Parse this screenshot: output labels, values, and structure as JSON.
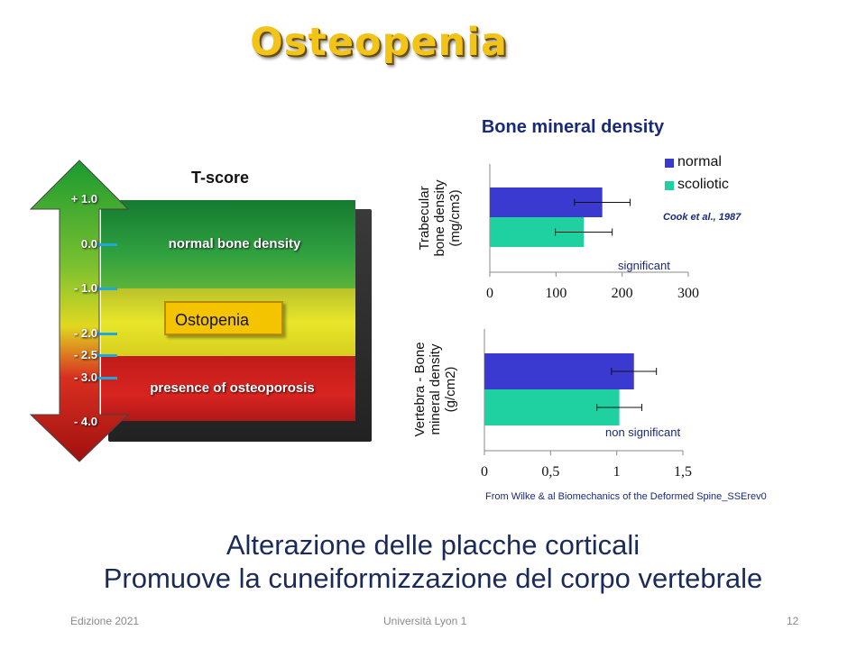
{
  "slide": {
    "title": "Osteopenia",
    "bottom_line1": "Alterazione delle placche corticali",
    "bottom_line2": "Promuove la cuneiformizzazione del corpo vertebrale",
    "footer_left": "Edizione 2021",
    "footer_center": "Università Lyon 1",
    "footer_right": "12"
  },
  "tscore": {
    "title": "T-score",
    "ticks": [
      "+ 1.0",
      "0.0",
      "- 1.0",
      "- 2.0",
      "- 2.5",
      "- 3.0",
      "- 4.0"
    ],
    "band_normal": "normal bone density",
    "band_osteopenia": "Ostopenia",
    "band_osteoporosis": "presence of osteoporosis",
    "colors": {
      "green": "#1f8f3a",
      "yellow": "#d8d820",
      "red": "#c8201e",
      "tick": "#1ea8e0"
    }
  },
  "chart_title": "Bone mineral density",
  "legend": {
    "normal": "normal",
    "scoliotic": "scoliotic"
  },
  "colors": {
    "normal": "#3a3ad0",
    "scoliotic": "#1fd0a0"
  },
  "annotations": {
    "cook": "Cook  et al., 1987",
    "significant": "significant",
    "non_significant": "non significant",
    "source": "From Wilke  & al Biomechanics  of the Deformed Spine_SSErev0"
  },
  "chart_data": [
    {
      "type": "bar",
      "orientation": "horizontal",
      "ylabel": "Trabecular bone density (mg/cm3)",
      "xlim": [
        0,
        300
      ],
      "xticks": [
        "0",
        "100",
        "200",
        "300"
      ],
      "series": [
        {
          "name": "normal",
          "value": 170,
          "error": 42
        },
        {
          "name": "scoliotic",
          "value": 142,
          "error": 43
        }
      ]
    },
    {
      "type": "bar",
      "orientation": "horizontal",
      "ylabel": "Vertebra - Bone mineral density (g/cm2)",
      "xlim": [
        0,
        1.5
      ],
      "xticks": [
        "0",
        "0,5",
        "1",
        "1,5"
      ],
      "series": [
        {
          "name": "normal",
          "value": 1.13,
          "error": 0.17
        },
        {
          "name": "scoliotic",
          "value": 1.02,
          "error": 0.17
        }
      ]
    }
  ]
}
